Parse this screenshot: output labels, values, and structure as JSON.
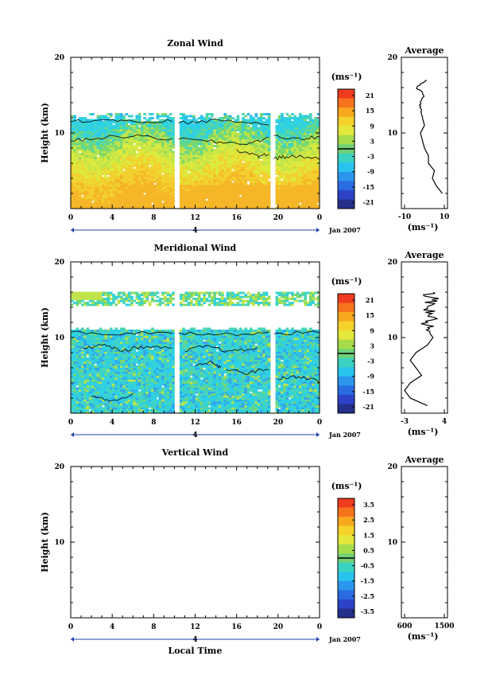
{
  "chart_data": [
    {
      "type": "heatmap",
      "title": "Zonal Wind",
      "ylabel": "Height (km)",
      "xlim": [
        0,
        24
      ],
      "ylim": [
        0,
        20
      ],
      "x_ticks": [
        "0",
        "4",
        "8",
        "12",
        "16",
        "20",
        "0"
      ],
      "y_ticks": [
        "20",
        "10"
      ],
      "date_label": "4",
      "date_suffix": "Jan 2007",
      "colorbar": {
        "unit": "(ms⁻¹)",
        "ticks": [
          "21",
          "15",
          "9",
          "3",
          "-3",
          "-9",
          "-15",
          "-21"
        ]
      },
      "data_gaps_hours": [
        [
          9.9,
          10.4
        ],
        [
          19.2,
          19.6
        ]
      ],
      "average_profile": {
        "title": "Average",
        "xlabel": "(ms⁻¹)",
        "xlim": [
          -10,
          10
        ],
        "x_ticks": [
          "-10",
          "10"
        ],
        "y_ticks": [
          "20",
          "10"
        ],
        "heights": [
          2,
          3,
          4,
          5,
          6,
          7,
          8,
          9,
          10,
          11,
          12,
          13,
          14,
          15,
          16,
          17
        ],
        "values": [
          9,
          6,
          4,
          5,
          2,
          2,
          0,
          -1,
          -2,
          0,
          -1,
          -2,
          -2,
          0,
          -4,
          1
        ]
      }
    },
    {
      "type": "heatmap",
      "title": "Meridional Wind",
      "ylabel": "Height (km)",
      "xlim": [
        0,
        24
      ],
      "ylim": [
        0,
        20
      ],
      "x_ticks": [
        "0",
        "4",
        "8",
        "12",
        "16",
        "20",
        "0"
      ],
      "y_ticks": [
        "20",
        "10"
      ],
      "date_label": "4",
      "date_suffix": "Jan 2007",
      "colorbar": {
        "unit": "(ms⁻¹)",
        "ticks": [
          "21",
          "15",
          "9",
          "3",
          "-3",
          "-9",
          "-15",
          "-21"
        ]
      },
      "data_gaps_hours": [
        [
          9.9,
          10.4
        ],
        [
          19.2,
          19.6
        ]
      ],
      "average_profile": {
        "title": "Average",
        "xlabel": "(ms⁻¹)",
        "xlim": [
          -3,
          4
        ],
        "x_ticks": [
          "-3",
          "4"
        ],
        "y_ticks": [
          "20",
          "10"
        ],
        "heights": [
          1,
          2,
          3,
          4,
          5,
          6,
          7,
          8,
          9,
          10,
          11,
          12,
          13,
          14,
          15,
          16
        ],
        "values": [
          1,
          -2,
          -3,
          -2,
          0,
          -1,
          -2,
          -1,
          1,
          2,
          1,
          1,
          2,
          1,
          2,
          1
        ]
      }
    },
    {
      "type": "heatmap",
      "title": "Vertical Wind",
      "ylabel": "Height (km)",
      "xlabel": "Local Time",
      "xlim": [
        0,
        24
      ],
      "ylim": [
        0,
        20
      ],
      "x_ticks": [
        "0",
        "4",
        "8",
        "12",
        "16",
        "20",
        "0"
      ],
      "y_ticks": [
        "20",
        "10"
      ],
      "date_label": "4",
      "date_suffix": "Jan 2007",
      "colorbar": {
        "unit": "(ms⁻¹)",
        "ticks": [
          "3.5",
          "2.5",
          "1.5",
          "0.5",
          "-0.5",
          "-1.5",
          "-2.5",
          "-3.5"
        ]
      },
      "average_profile": {
        "title": "Average",
        "xlabel": "(ms⁻¹)",
        "x_ticks": [
          "600",
          "1500"
        ],
        "y_ticks": [
          "20",
          "10"
        ],
        "heights": [],
        "values": []
      }
    }
  ],
  "colors": {
    "colorbar": [
      "#f03c1e",
      "#f7731c",
      "#f7a81c",
      "#f5d22a",
      "#e3e83a",
      "#a6dc4a",
      "#6fd276",
      "#3cd2c2",
      "#28c4ee",
      "#2a97ec",
      "#2a6be0",
      "#2c43c8",
      "#24308a"
    ],
    "field_warm": [
      "#f5b628",
      "#f2d12e",
      "#ddea3e",
      "#bfe44a"
    ],
    "field_cool": [
      "#7ad86c",
      "#48d6b4",
      "#2ed0e4",
      "#2cb6f0",
      "#36a2ea"
    ],
    "contour": "#000000"
  }
}
